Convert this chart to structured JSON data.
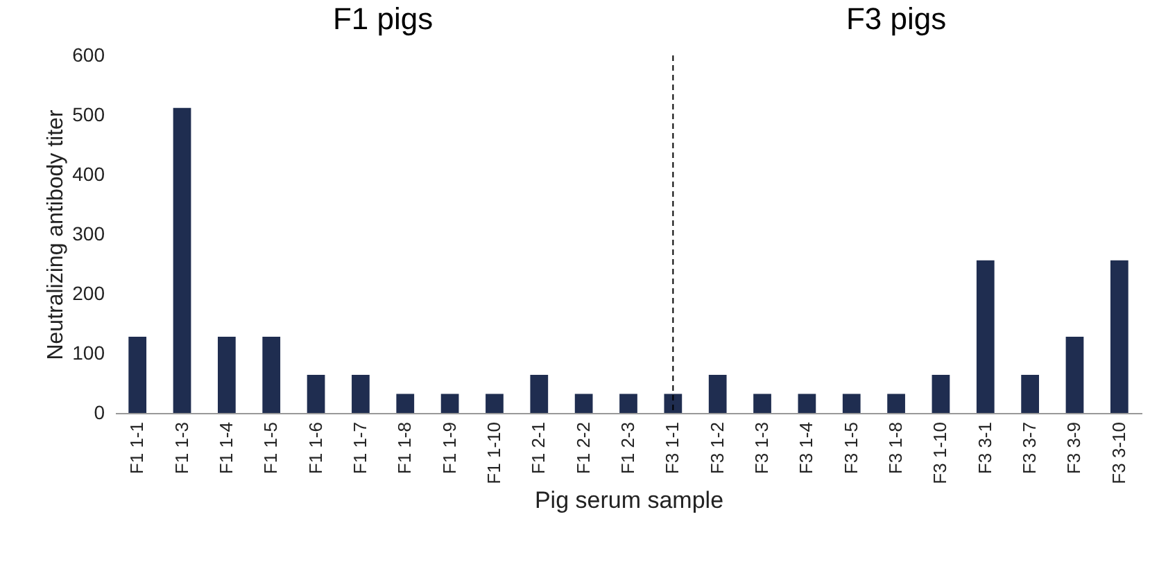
{
  "chart_data": {
    "type": "bar",
    "xlabel": "Pig serum sample",
    "ylabel": "Neutralizing antibody titer",
    "categories": [
      "F1 1-1",
      "F1 1-3",
      "F1 1-4",
      "F1 1-5",
      "F1 1-6",
      "F1 1-7",
      "F1 1-8",
      "F1 1-9",
      "F1 1-10",
      "F1 2-1",
      "F1 2-2",
      "F1 2-3",
      "F3 1-1",
      "F3 1-2",
      "F3 1-3",
      "F3 1-4",
      "F3 1-5",
      "F3 1-8",
      "F3 1-10",
      "F3 3-1",
      "F3 3-7",
      "F3 3-9",
      "F3 3-10"
    ],
    "values": [
      128,
      512,
      128,
      128,
      64,
      64,
      32,
      32,
      32,
      64,
      32,
      32,
      32,
      64,
      32,
      32,
      32,
      32,
      64,
      256,
      64,
      128,
      256
    ],
    "color": "#1f2d50",
    "ylim": [
      0,
      600
    ],
    "yticks": [
      0,
      100,
      200,
      300,
      400,
      500,
      600
    ],
    "grid": false,
    "annotations": [
      "F1 pigs",
      "F3 pigs"
    ],
    "ref_lines": [
      {
        "axis": "x",
        "value": "F3 1-1",
        "line_style": "dashed",
        "color": "#000000"
      }
    ]
  }
}
